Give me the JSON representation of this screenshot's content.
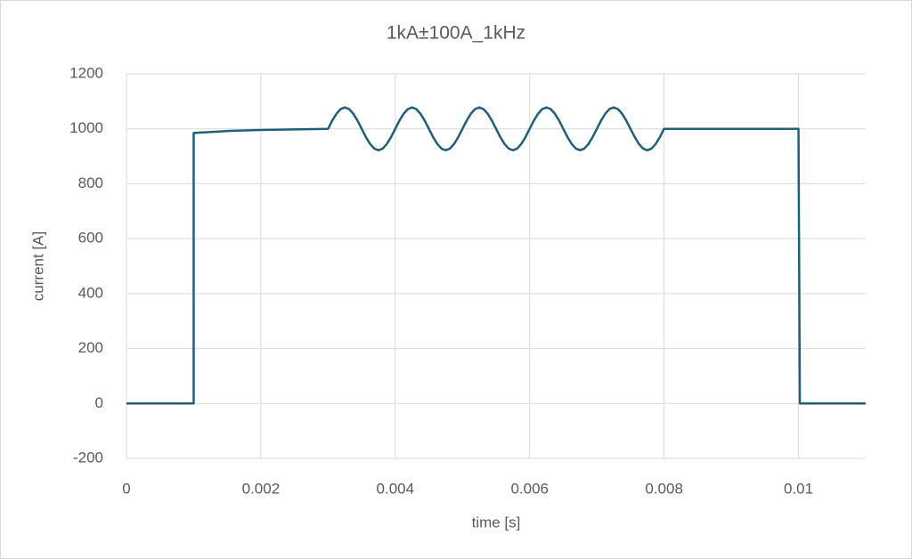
{
  "chart_data": {
    "type": "line",
    "title": "1kA±100A_1kHz",
    "x_label": "time [s]",
    "y_label": "current [A]",
    "x": [
      0,
      0.001,
      0.001,
      0.0015,
      0.002,
      0.003,
      0.003,
      0.0030625,
      0.003125,
      0.0031875,
      0.00325,
      0.0033125,
      0.003375,
      0.0034375,
      0.0035,
      0.0035625,
      0.003625,
      0.0036875,
      0.00375,
      0.0038125,
      0.003875,
      0.0039375,
      0.004,
      0.0040625,
      0.004125,
      0.0041875,
      0.00425,
      0.0043125,
      0.004375,
      0.0044375,
      0.0045,
      0.0045625,
      0.004625,
      0.0046875,
      0.00475,
      0.0048125,
      0.004875,
      0.0049375,
      0.005,
      0.0050625,
      0.005125,
      0.0051875,
      0.00525,
      0.0053125,
      0.005375,
      0.0054375,
      0.0055,
      0.0055625,
      0.005625,
      0.0056875,
      0.00575,
      0.0058125,
      0.005875,
      0.0059375,
      0.006,
      0.0060625,
      0.006125,
      0.0061875,
      0.00625,
      0.0063125,
      0.006375,
      0.0064375,
      0.0065,
      0.0065625,
      0.006625,
      0.0066875,
      0.00675,
      0.0068125,
      0.006875,
      0.0069375,
      0.007,
      0.0070625,
      0.007125,
      0.0071875,
      0.00725,
      0.0073125,
      0.007375,
      0.0074375,
      0.0075,
      0.0075625,
      0.007625,
      0.0076875,
      0.00775,
      0.0078125,
      0.007875,
      0.0079375,
      0.008,
      0.01,
      0.01002,
      0.011
    ],
    "series": [
      {
        "name": "current",
        "color": "#1f5f7b",
        "values": [
          0,
          0,
          985,
          992,
          996,
          1000,
          1000,
          1030,
          1055,
          1072,
          1078,
          1072,
          1055,
          1030,
          1000,
          970,
          945,
          928,
          922,
          928,
          945,
          970,
          1000,
          1030,
          1055,
          1072,
          1078,
          1072,
          1055,
          1030,
          1000,
          970,
          945,
          928,
          922,
          928,
          945,
          970,
          1000,
          1030,
          1055,
          1072,
          1078,
          1072,
          1055,
          1030,
          1000,
          970,
          945,
          928,
          922,
          928,
          945,
          970,
          1000,
          1030,
          1055,
          1072,
          1078,
          1072,
          1055,
          1030,
          1000,
          970,
          945,
          928,
          922,
          928,
          945,
          970,
          1000,
          1030,
          1055,
          1072,
          1078,
          1072,
          1055,
          1030,
          1000,
          970,
          945,
          928,
          922,
          928,
          945,
          970,
          1000,
          1000,
          0,
          0
        ]
      }
    ],
    "xlim": [
      0,
      0.011
    ],
    "xticks": [
      0,
      0.002,
      0.004,
      0.006,
      0.008,
      0.01
    ],
    "ylim": [
      -200,
      1200
    ],
    "yticks": [
      -200,
      0,
      200,
      400,
      600,
      800,
      1000,
      1200
    ],
    "grid": true
  }
}
